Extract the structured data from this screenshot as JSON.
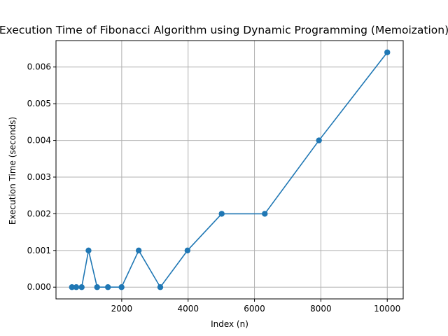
{
  "chart_data": {
    "type": "line",
    "title": "Execution Time of Fibonacci Algorithm using Dynamic Programming (Memoization)",
    "xlabel": "Index (n)",
    "ylabel": "Execution Time (seconds)",
    "xlim": [
      20,
      10480
    ],
    "ylim": [
      -0.00032,
      0.00672
    ],
    "xticks": [
      2000,
      4000,
      6000,
      8000,
      10000
    ],
    "xtick_labels": [
      "2000",
      "4000",
      "6000",
      "8000",
      "10000"
    ],
    "yticks": [
      0,
      0.001,
      0.002,
      0.003,
      0.004,
      0.005,
      0.006
    ],
    "ytick_labels": [
      "0.000",
      "0.001",
      "0.002",
      "0.003",
      "0.004",
      "0.005",
      "0.006"
    ],
    "grid": true,
    "series": [
      {
        "color": "#1f77b4",
        "marker": "circle",
        "x": [
          500,
          631,
          794,
          1000,
          1259,
          1585,
          1995,
          2512,
          3162,
          3981,
          5012,
          6310,
          7943,
          10000
        ],
        "y": [
          0,
          0,
          0,
          0.001,
          0,
          0,
          0,
          0.001,
          0,
          0.001,
          0.002,
          0.002,
          0.004,
          0.0064
        ]
      }
    ]
  }
}
